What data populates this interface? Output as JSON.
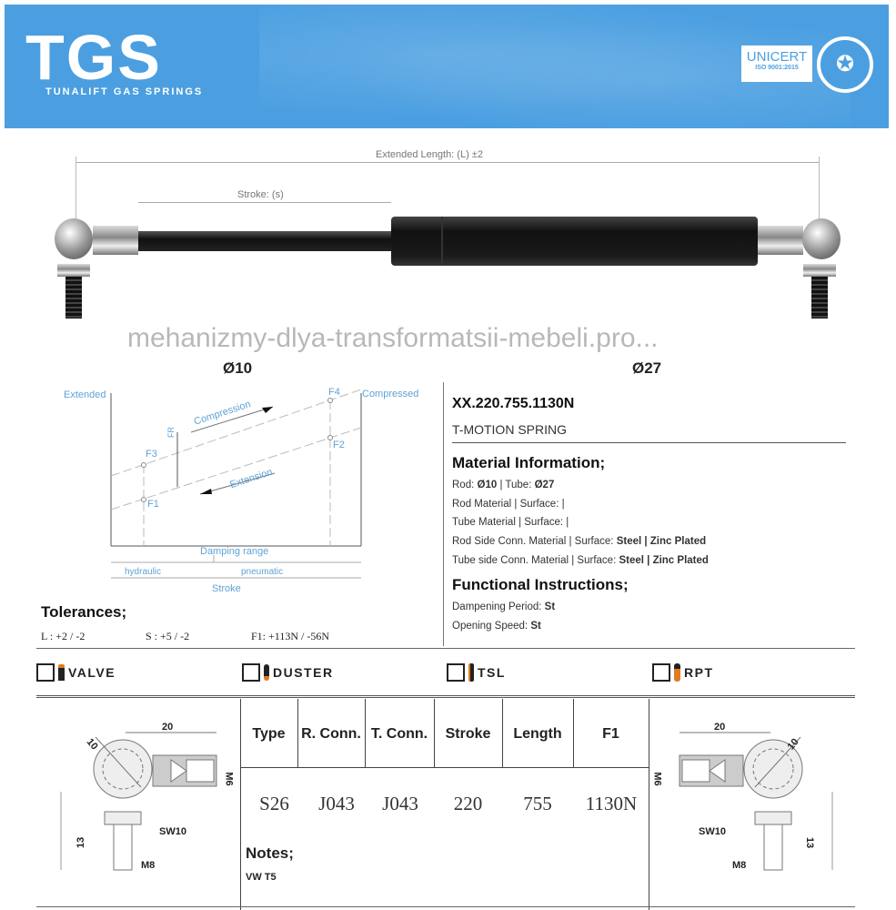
{
  "header": {
    "logo_text": "TGS",
    "logo_subtitle": "TUNALIFT GAS SPRINGS",
    "cert_name": "UNICERT",
    "cert_standard": "ISO 9001:2015"
  },
  "drawing": {
    "extended_length_label": "Extended Length: (L) ±2",
    "stroke_label": "Stroke: (s)"
  },
  "diameters": {
    "rod": "Ø10",
    "tube": "Ø27"
  },
  "diagram": {
    "extended": "Extended",
    "compressed": "Compressed",
    "compression": "Compression",
    "extension": "Extension",
    "fr": "FR",
    "f1": "F1",
    "f2": "F2",
    "f3": "F3",
    "f4": "F4",
    "damping_range": "Damping range",
    "hydraulic": "hydraulic",
    "pneumatic": "pneumatic",
    "stroke": "Stroke"
  },
  "tolerances": {
    "title": "Tolerances;",
    "L": "L : +2 / -2",
    "S": "S : +5 / -2",
    "F1": "F1: +113N / -56N"
  },
  "product": {
    "code": "XX.220.755.1130N",
    "name": "T-MOTION SPRING"
  },
  "material": {
    "title": "Material Information;",
    "rod_label": "Rod: ",
    "rod_value": "Ø10",
    "tube_label": " | Tube: ",
    "tube_value": "Ø27",
    "rod_material": "Rod Material | Surface:  |",
    "tube_material": "Tube Material | Surface:  |",
    "rod_conn_label": "Rod Side Conn. Material | Surface: ",
    "rod_conn_value": "Steel | Zinc Plated",
    "tube_conn_label": "Tube side Conn. Material | Surface: ",
    "tube_conn_value": "Steel | Zinc Plated"
  },
  "functional": {
    "title": "Functional Instructions;",
    "dampening_label": "Dampening Period: ",
    "dampening_value": "St",
    "speed_label": "Opening Speed: ",
    "speed_value": "St"
  },
  "options": [
    {
      "label": "VALVE",
      "checked": false
    },
    {
      "label": "DUSTER",
      "checked": false
    },
    {
      "label": "TSL",
      "checked": false
    },
    {
      "label": "RPT",
      "checked": false
    }
  ],
  "table": {
    "headers": [
      "Type",
      "R. Conn.",
      "T. Conn.",
      "Stroke",
      "Length",
      "F1"
    ],
    "values": [
      "S26",
      "J043",
      "J043",
      "220",
      "755",
      "1130N"
    ]
  },
  "notes": {
    "title": "Notes;",
    "text": "VW T5"
  },
  "fitting": {
    "width": "20",
    "ball": "10",
    "thread": "M6",
    "wrench": "SW10",
    "height": "13",
    "bolt": "M8"
  },
  "watermark": "mehanizmy-dlya-transformatsii-mebeli.pro..."
}
